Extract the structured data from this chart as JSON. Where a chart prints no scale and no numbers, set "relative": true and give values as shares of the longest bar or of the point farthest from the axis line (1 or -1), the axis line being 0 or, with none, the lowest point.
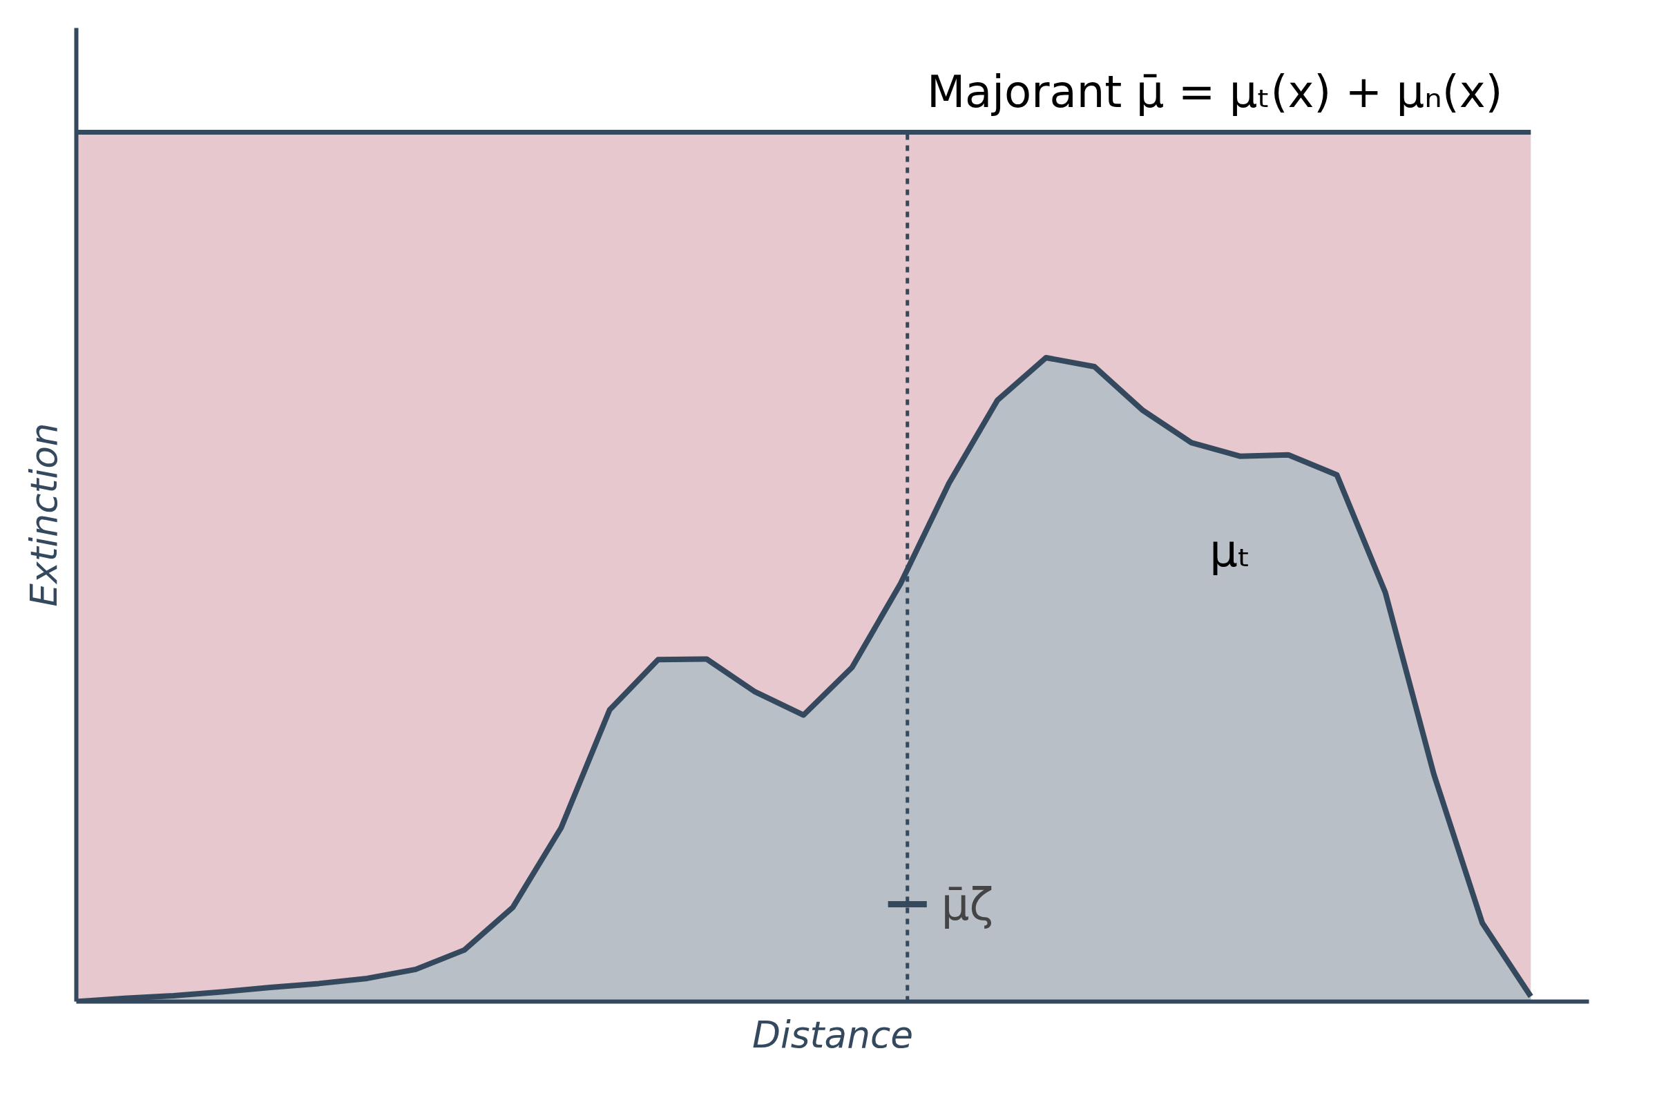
{
  "chart_data": {
    "type": "area",
    "relative": true,
    "xlabel": "Distance",
    "ylabel": "Extinction",
    "tick_labels": false,
    "grid": false,
    "legend": false,
    "categories": [
      null,
      null,
      null,
      null,
      null,
      null,
      null,
      null,
      null,
      null,
      null,
      null,
      null,
      null,
      null,
      null,
      null,
      null,
      null,
      null,
      null,
      null,
      null,
      null,
      null,
      null,
      null,
      null,
      null,
      null,
      null
    ],
    "series": [
      {
        "name": "μₜ",
        "color": "#34495e",
        "values": [
          0,
          0.005,
          0.009,
          0.015,
          0.022,
          0.028,
          0.036,
          0.05,
          0.08,
          0.146,
          0.27,
          0.453,
          0.531,
          0.532,
          0.481,
          0.445,
          0.519,
          0.649,
          0.805,
          0.934,
          1,
          0.986,
          0.918,
          0.868,
          0.847,
          0.849,
          0.818,
          0.635,
          0.353,
          0.122,
          0.008
        ]
      }
    ],
    "ref_lines": [
      {
        "axis": "y",
        "value": 1.35,
        "label": "Majorant   μ̄ = μₜ(x) + μₙ(x)",
        "color": "#34495e",
        "line_style": "solid"
      }
    ],
    "bands": [
      {
        "axis": "y",
        "from": 0,
        "to": 1.35,
        "color": "#e6c8ce"
      }
    ],
    "annotations": [
      "μ̄ζ"
    ]
  }
}
